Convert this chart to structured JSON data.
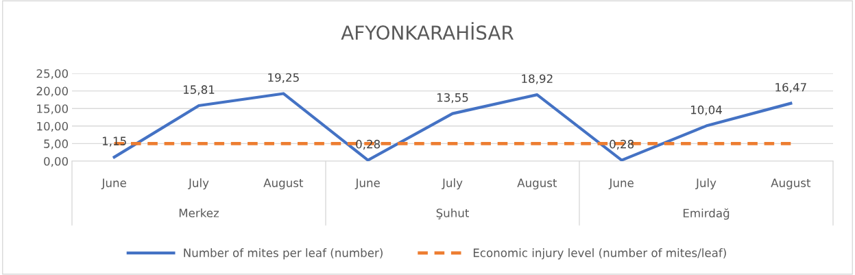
{
  "chart_data": {
    "type": "line",
    "title": "AFYONKARAHİSAR",
    "categories": [
      "June",
      "July",
      "August",
      "June",
      "July",
      "August",
      "June",
      "July",
      "August"
    ],
    "annotations": [
      "Merkez",
      "Şuhut",
      "Emirdağ"
    ],
    "series": [
      {
        "name": "Number of mites per leaf (number)",
        "color": "#4472c4",
        "line_style": "solid",
        "values": [
          1.15,
          15.81,
          19.25,
          0.28,
          13.55,
          18.92,
          0.28,
          10.04,
          16.47
        ],
        "value_labels": [
          "1,15",
          "15,81",
          "19,25",
          "0,28",
          "13,55",
          "18,92",
          "0,28",
          "10,04",
          "16,47"
        ]
      },
      {
        "name": "Economic injury level (number of mites/leaf)",
        "color": "#ed7d31",
        "line_style": "dashed",
        "values": [
          5,
          5,
          5,
          5,
          5,
          5,
          5,
          5,
          5
        ]
      }
    ],
    "ylim": [
      0,
      25
    ],
    "yticks": [
      {
        "value": 0,
        "label": "0,00"
      },
      {
        "value": 5,
        "label": "5,00"
      },
      {
        "value": 10,
        "label": "10,00"
      },
      {
        "value": 15,
        "label": "15,00"
      },
      {
        "value": 20,
        "label": "20,00"
      },
      {
        "value": 25,
        "label": "25,00"
      }
    ],
    "grid": "y",
    "legend": "bottom",
    "marker": "none"
  }
}
